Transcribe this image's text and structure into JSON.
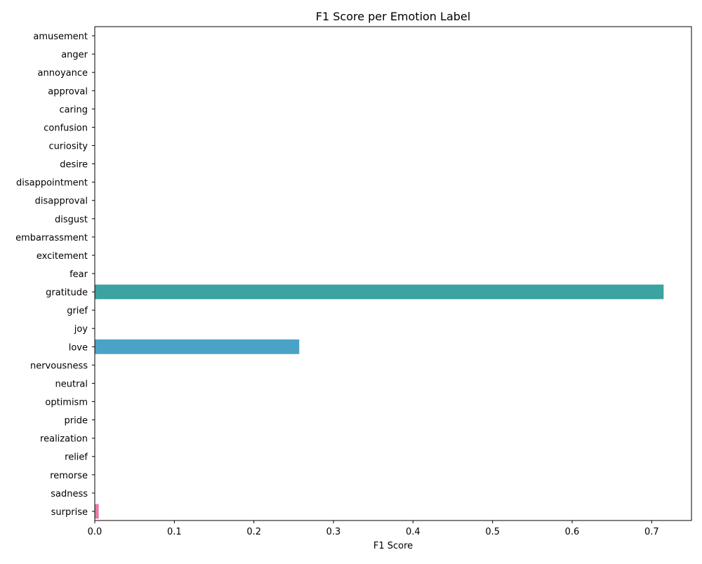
{
  "chart_data": {
    "type": "bar",
    "orientation": "horizontal",
    "title": "F1 Score per Emotion Label",
    "xlabel": "F1 Score",
    "ylabel": "",
    "xlim": [
      0,
      0.75
    ],
    "xticks": [
      0,
      0.1,
      0.2,
      0.3,
      0.4,
      0.5,
      0.6,
      0.7
    ],
    "xtick_labels": [
      "0.0",
      "0.1",
      "0.2",
      "0.3",
      "0.4",
      "0.5",
      "0.6",
      "0.7"
    ],
    "grid": false,
    "categories": [
      "amusement",
      "anger",
      "annoyance",
      "approval",
      "caring",
      "confusion",
      "curiosity",
      "desire",
      "disappointment",
      "disapproval",
      "disgust",
      "embarrassment",
      "excitement",
      "fear",
      "gratitude",
      "grief",
      "joy",
      "love",
      "nervousness",
      "neutral",
      "optimism",
      "pride",
      "realization",
      "relief",
      "remorse",
      "sadness",
      "surprise"
    ],
    "values": [
      0,
      0,
      0,
      0,
      0,
      0,
      0,
      0,
      0,
      0,
      0,
      0,
      0,
      0,
      0.715,
      0,
      0,
      0.257,
      0,
      0,
      0,
      0,
      0,
      0,
      0,
      0,
      0.005
    ],
    "colors": [
      "#f77189",
      "#f67a52",
      "#e08932",
      "#c39532",
      "#ad9c31",
      "#97a431",
      "#77ab31",
      "#33b039",
      "#35ad6d",
      "#36ab87",
      "#37aa9a",
      "#38a8aa",
      "#39a7b9",
      "#3ba4c9",
      "#3ba3a0",
      "#5c9df4",
      "#8e93f4",
      "#4aa3c6",
      "#c77bf4",
      "#e866f4",
      "#f46bd6",
      "#f56fb7",
      "#f672a0",
      "#f7758c",
      "#f77189",
      "#f67a52",
      "#e87aa9"
    ]
  }
}
